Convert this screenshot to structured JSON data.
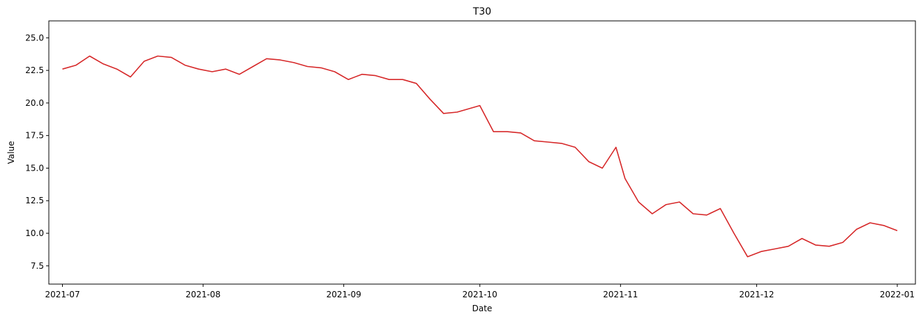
{
  "chart_data": {
    "type": "line",
    "title": "T30",
    "xlabel": "Date",
    "ylabel": "Value",
    "xlim": [
      "2021-06-28",
      "2022-01-05"
    ],
    "ylim": [
      6.1,
      26.3
    ],
    "x_ticks": [
      "2021-07",
      "2021-08",
      "2021-09",
      "2021-10",
      "2021-11",
      "2021-12",
      "2022-01"
    ],
    "x_tick_dates": [
      "2021-07-01",
      "2021-08-01",
      "2021-09-01",
      "2021-10-01",
      "2021-11-01",
      "2021-12-01",
      "2022-01-01"
    ],
    "y_ticks": [
      7.5,
      10.0,
      12.5,
      15.0,
      17.5,
      20.0,
      22.5,
      25.0
    ],
    "y_tick_labels": [
      "7.5",
      "10.0",
      "12.5",
      "15.0",
      "17.5",
      "20.0",
      "22.5",
      "25.0"
    ],
    "grid": false,
    "line_color": "#d62728",
    "series": [
      {
        "x": [
          "2021-07-01",
          "2021-07-04",
          "2021-07-07",
          "2021-07-10",
          "2021-07-13",
          "2021-07-16",
          "2021-07-19",
          "2021-07-22",
          "2021-07-25",
          "2021-07-28",
          "2021-07-31",
          "2021-08-03",
          "2021-08-06",
          "2021-08-09",
          "2021-08-12",
          "2021-08-15",
          "2021-08-18",
          "2021-08-21",
          "2021-08-24",
          "2021-08-27",
          "2021-08-30",
          "2021-09-02",
          "2021-09-05",
          "2021-09-08",
          "2021-09-11",
          "2021-09-14",
          "2021-09-17",
          "2021-09-20",
          "2021-09-23",
          "2021-09-26",
          "2021-09-29",
          "2021-10-01",
          "2021-10-04",
          "2021-10-07",
          "2021-10-10",
          "2021-10-13",
          "2021-10-16",
          "2021-10-19",
          "2021-10-22",
          "2021-10-25",
          "2021-10-28",
          "2021-10-31",
          "2021-11-02",
          "2021-11-05",
          "2021-11-08",
          "2021-11-11",
          "2021-11-14",
          "2021-11-17",
          "2021-11-20",
          "2021-11-23",
          "2021-11-26",
          "2021-11-29",
          "2021-12-02",
          "2021-12-05",
          "2021-12-08",
          "2021-12-11",
          "2021-12-14",
          "2021-12-17",
          "2021-12-20",
          "2021-12-23",
          "2021-12-26",
          "2021-12-29",
          "2022-01-01"
        ],
        "y": [
          22.6,
          22.9,
          23.6,
          23.0,
          22.6,
          22.0,
          23.2,
          23.6,
          23.5,
          22.9,
          22.6,
          22.4,
          22.6,
          22.2,
          22.8,
          23.4,
          23.3,
          23.1,
          22.8,
          22.7,
          22.4,
          21.8,
          22.2,
          22.1,
          21.8,
          21.8,
          21.5,
          20.3,
          19.2,
          19.3,
          19.6,
          19.8,
          17.8,
          17.8,
          17.7,
          17.1,
          17.0,
          16.9,
          16.6,
          15.5,
          15.0,
          16.6,
          14.2,
          12.4,
          11.5,
          12.2,
          12.4,
          11.5,
          11.4,
          11.9,
          10.0,
          8.2,
          8.6,
          8.8,
          9.0,
          9.6,
          9.1,
          9.0,
          9.3,
          10.3,
          10.8,
          10.6,
          10.2
        ]
      }
    ]
  }
}
